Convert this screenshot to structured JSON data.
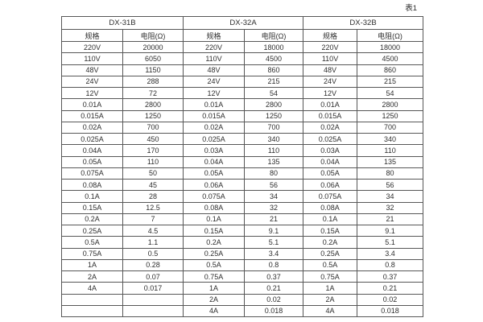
{
  "caption": "表1",
  "colors": {
    "background": "#ffffff",
    "border": "#575757",
    "text": "#2e2e2e"
  },
  "table": {
    "groups": [
      {
        "name": "DX-31B",
        "columns": [
          "规格",
          "电阻(Ω)"
        ],
        "rows": [
          [
            "220V",
            "20000"
          ],
          [
            "110V",
            "6050"
          ],
          [
            "48V",
            "1150"
          ],
          [
            "24V",
            "288"
          ],
          [
            "12V",
            "72"
          ],
          [
            "0.01A",
            "2800"
          ],
          [
            "0.015A",
            "1250"
          ],
          [
            "0.02A",
            "700"
          ],
          [
            "0.025A",
            "450"
          ],
          [
            "0.04A",
            "170"
          ],
          [
            "0.05A",
            "110"
          ],
          [
            "0.075A",
            "50"
          ],
          [
            "0.08A",
            "45"
          ],
          [
            "0.1A",
            "28"
          ],
          [
            "0.15A",
            "12.5"
          ],
          [
            "0.2A",
            "7"
          ],
          [
            "0.25A",
            "4.5"
          ],
          [
            "0.5A",
            "1.1"
          ],
          [
            "0.75A",
            "0.5"
          ],
          [
            "1A",
            "0.28"
          ],
          [
            "2A",
            "0.07"
          ],
          [
            "4A",
            "0.017"
          ],
          [
            "",
            ""
          ],
          [
            "",
            ""
          ]
        ]
      },
      {
        "name": "DX-32A",
        "columns": [
          "规格",
          "电阻(Ω)"
        ],
        "rows": [
          [
            "220V",
            "18000"
          ],
          [
            "110V",
            "4500"
          ],
          [
            "48V",
            "860"
          ],
          [
            "24V",
            "215"
          ],
          [
            "12V",
            "54"
          ],
          [
            "0.01A",
            "2800"
          ],
          [
            "0.015A",
            "1250"
          ],
          [
            "0.02A",
            "700"
          ],
          [
            "0.025A",
            "340"
          ],
          [
            "0.03A",
            "110"
          ],
          [
            "0.04A",
            "135"
          ],
          [
            "0.05A",
            "80"
          ],
          [
            "0.06A",
            "56"
          ],
          [
            "0.075A",
            "34"
          ],
          [
            "0.08A",
            "32"
          ],
          [
            "0.1A",
            "21"
          ],
          [
            "0.15A",
            "9.1"
          ],
          [
            "0.2A",
            "5.1"
          ],
          [
            "0.25A",
            "3.4"
          ],
          [
            "0.5A",
            "0.8"
          ],
          [
            "0.75A",
            "0.37"
          ],
          [
            "1A",
            "0.21"
          ],
          [
            "2A",
            "0.02"
          ],
          [
            "4A",
            "0.018"
          ]
        ]
      },
      {
        "name": "DX-32B",
        "columns": [
          "规格",
          "电阻(Ω)"
        ],
        "rows": [
          [
            "220V",
            "18000"
          ],
          [
            "110V",
            "4500"
          ],
          [
            "48V",
            "860"
          ],
          [
            "24V",
            "215"
          ],
          [
            "12V",
            "54"
          ],
          [
            "0.01A",
            "2800"
          ],
          [
            "0.015A",
            "1250"
          ],
          [
            "0.02A",
            "700"
          ],
          [
            "0.025A",
            "340"
          ],
          [
            "0.03A",
            "110"
          ],
          [
            "0.04A",
            "135"
          ],
          [
            "0.05A",
            "80"
          ],
          [
            "0.06A",
            "56"
          ],
          [
            "0.075A",
            "34"
          ],
          [
            "0.08A",
            "32"
          ],
          [
            "0.1A",
            "21"
          ],
          [
            "0.15A",
            "9.1"
          ],
          [
            "0.2A",
            "5.1"
          ],
          [
            "0.25A",
            "3.4"
          ],
          [
            "0.5A",
            "0.8"
          ],
          [
            "0.75A",
            "0.37"
          ],
          [
            "1A",
            "0.21"
          ],
          [
            "2A",
            "0.02"
          ],
          [
            "4A",
            "0.018"
          ]
        ]
      }
    ]
  }
}
